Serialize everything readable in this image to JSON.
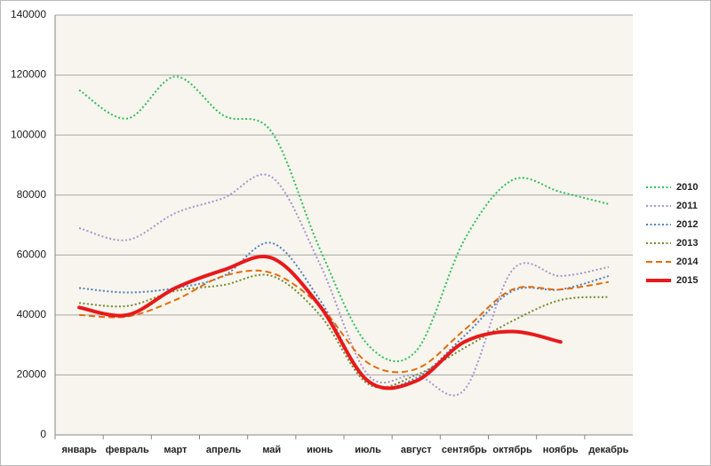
{
  "chart_data": {
    "type": "line",
    "categories": [
      "январь",
      "февраль",
      "март",
      "апрель",
      "май",
      "июнь",
      "июль",
      "август",
      "сентябрь",
      "октябрь",
      "ноябрь",
      "декабрь"
    ],
    "series": [
      {
        "name": "2010",
        "color": "#2fbf5a",
        "line_style": "dotted",
        "values": [
          115000,
          105500,
          119500,
          106500,
          101000,
          62000,
          30000,
          28000,
          65000,
          85000,
          81000,
          77000
        ]
      },
      {
        "name": "2011",
        "color": "#a396cf",
        "line_style": "dotted",
        "values": [
          69000,
          65000,
          74000,
          79000,
          86000,
          57000,
          20000,
          20000,
          15000,
          55000,
          53000,
          56000
        ]
      },
      {
        "name": "2012",
        "color": "#4f81bd",
        "line_style": "dotted",
        "values": [
          49000,
          47500,
          49000,
          53000,
          64000,
          45000,
          18000,
          19000,
          33000,
          48000,
          48500,
          53000
        ]
      },
      {
        "name": "2013",
        "color": "#6f8a2e",
        "line_style": "dotted",
        "values": [
          44000,
          43000,
          48000,
          50000,
          53000,
          40000,
          17000,
          20000,
          29000,
          38000,
          45000,
          46000
        ]
      },
      {
        "name": "2014",
        "color": "#e46c0a",
        "line_style": "dashed",
        "values": [
          40000,
          39500,
          45000,
          53000,
          54000,
          43000,
          24000,
          22000,
          35000,
          48500,
          48500,
          51000
        ]
      },
      {
        "name": "2015",
        "color": "#e8191b",
        "line_style": "solid",
        "values": [
          42500,
          40000,
          49000,
          55000,
          59000,
          43000,
          18000,
          18000,
          31000,
          34500,
          31000,
          null
        ]
      }
    ],
    "ylim": [
      0,
      140000
    ],
    "yticks": [
      0,
      20000,
      40000,
      60000,
      80000,
      100000,
      120000,
      140000
    ],
    "grid": true,
    "legend": "right"
  }
}
